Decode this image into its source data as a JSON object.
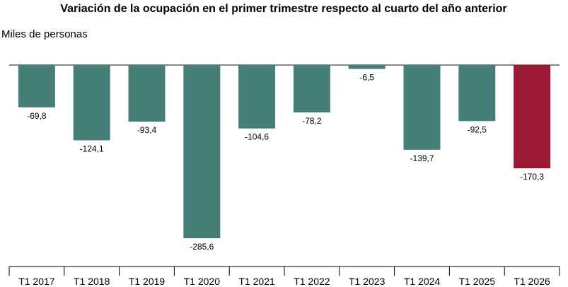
{
  "chart_data": {
    "type": "bar",
    "title": "Variación de la ocupación en el primer trimestre respecto al cuarto del año anterior",
    "ylabel": "Miles de personas",
    "categories": [
      "T1 2017",
      "T1 2018",
      "T1 2019",
      "T1 2020",
      "T1 2021",
      "T1 2022",
      "T1 2023",
      "T1 2024",
      "T1 2025",
      "T1 2026"
    ],
    "values": [
      -69.8,
      -124.1,
      -93.4,
      -285.6,
      -104.6,
      -78.2,
      -6.5,
      -139.7,
      -92.5,
      -170.3
    ],
    "value_labels": [
      "-69,8",
      "-124,1",
      "-93,4",
      "-285,6",
      "-104,6",
      "-78,2",
      "-6,5",
      "-139,7",
      "-92,5",
      "-170,3"
    ],
    "ylim": [
      -300,
      0
    ],
    "grid": false,
    "legend": "none",
    "colors": {
      "default": "#467f78",
      "highlight": "#9b1a33",
      "zero_line": "#888888",
      "axis": "#000000"
    },
    "highlight_index": 9
  }
}
